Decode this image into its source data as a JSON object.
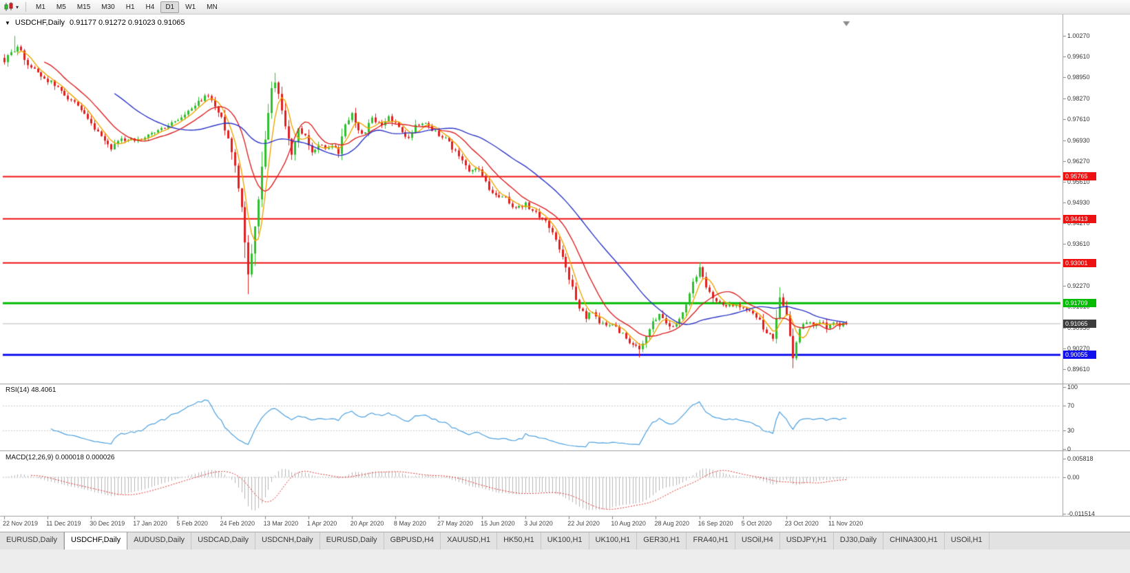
{
  "icons": {
    "chart_menu": "▼",
    "toolbar_caret": "▾"
  },
  "toolbar": {
    "timeframes": [
      "M1",
      "M5",
      "M15",
      "M30",
      "H1",
      "H4",
      "D1",
      "W1",
      "MN"
    ],
    "active_timeframe": "D1"
  },
  "chart": {
    "title_symbol": "USDCHF,Daily",
    "title_ohlc": "0.91177 0.91272 0.91023 0.91065"
  },
  "indicators": {
    "rsi": {
      "label_text": "RSI(14) 48.4061"
    },
    "macd": {
      "label_text": "MACD(12,26,9) 0.000018 0.000026"
    }
  },
  "chart_data": {
    "type": "candlestick",
    "symbol": "USDCHF",
    "timeframe": "Daily",
    "ohlc_current": {
      "open": 0.91177,
      "high": 0.91272,
      "low": 0.91023,
      "close": 0.91065
    },
    "x_labels": [
      "22 Nov 2019",
      "11 Dec 2019",
      "30 Dec 2019",
      "17 Jan 2020",
      "5 Feb 2020",
      "24 Feb 2020",
      "13 Mar 2020",
      "1 Apr 2020",
      "20 Apr 2020",
      "8 May 2020",
      "27 May 2020",
      "15 Jun 2020",
      "3 Jul 2020",
      "22 Jul 2020",
      "10 Aug 2020",
      "28 Aug 2020",
      "16 Sep 2020",
      "5 Oct 2020",
      "23 Oct 2020",
      "11 Nov 2020"
    ],
    "y_ticks": [
      "1.00270",
      "0.99610",
      "0.98950",
      "0.98270",
      "0.97610",
      "0.96930",
      "0.96270",
      "0.95610",
      "0.94930",
      "0.94270",
      "0.93610",
      "0.92930",
      "0.92270",
      "0.91610",
      "0.90930",
      "0.90270",
      "0.89610"
    ],
    "price_range": {
      "max": 1.0043,
      "min": 0.8918
    },
    "num_candles": 253,
    "label_every": 13,
    "close_path": [
      [
        0,
        0.9945
      ],
      [
        2,
        0.9972
      ],
      [
        4,
        0.9996
      ],
      [
        6,
        0.9952
      ],
      [
        8,
        0.9928
      ],
      [
        11,
        0.99
      ],
      [
        14,
        0.9878
      ],
      [
        17,
        0.985
      ],
      [
        20,
        0.9822
      ],
      [
        23,
        0.9785
      ],
      [
        26,
        0.9742
      ],
      [
        29,
        0.97
      ],
      [
        32,
        0.9668
      ],
      [
        35,
        0.9692
      ],
      [
        38,
        0.97
      ],
      [
        41,
        0.9688
      ],
      [
        44,
        0.9715
      ],
      [
        47,
        0.9728
      ],
      [
        50,
        0.9748
      ],
      [
        53,
        0.9765
      ],
      [
        56,
        0.9792
      ],
      [
        59,
        0.9822
      ],
      [
        61,
        0.984
      ],
      [
        63,
        0.98
      ],
      [
        65,
        0.9762
      ],
      [
        67,
        0.97
      ],
      [
        69,
        0.9612
      ],
      [
        71,
        0.948
      ],
      [
        73,
        0.9262
      ],
      [
        74,
        0.9335
      ],
      [
        76,
        0.9505
      ],
      [
        78,
        0.97
      ],
      [
        80,
        0.9855
      ],
      [
        81,
        0.9885
      ],
      [
        83,
        0.9792
      ],
      [
        85,
        0.9695
      ],
      [
        86,
        0.9648
      ],
      [
        88,
        0.9725
      ],
      [
        90,
        0.9702
      ],
      [
        92,
        0.9648
      ],
      [
        94,
        0.9685
      ],
      [
        96,
        0.9662
      ],
      [
        98,
        0.9678
      ],
      [
        100,
        0.9655
      ],
      [
        102,
        0.9745
      ],
      [
        104,
        0.9778
      ],
      [
        107,
        0.9708
      ],
      [
        110,
        0.976
      ],
      [
        113,
        0.9735
      ],
      [
        115,
        0.977
      ],
      [
        117,
        0.9748
      ],
      [
        119,
        0.9715
      ],
      [
        121,
        0.9708
      ],
      [
        123,
        0.9738
      ],
      [
        126,
        0.975
      ],
      [
        129,
        0.9718
      ],
      [
        132,
        0.97
      ],
      [
        135,
        0.9655
      ],
      [
        138,
        0.9608
      ],
      [
        140,
        0.9592
      ],
      [
        142,
        0.9605
      ],
      [
        144,
        0.9555
      ],
      [
        146,
        0.9522
      ],
      [
        148,
        0.951
      ],
      [
        150,
        0.9505
      ],
      [
        152,
        0.9482
      ],
      [
        154,
        0.9478
      ],
      [
        156,
        0.9488
      ],
      [
        158,
        0.9462
      ],
      [
        160,
        0.9452
      ],
      [
        162,
        0.9432
      ],
      [
        164,
        0.94
      ],
      [
        166,
        0.9348
      ],
      [
        168,
        0.9285
      ],
      [
        170,
        0.922
      ],
      [
        172,
        0.9158
      ],
      [
        174,
        0.9125
      ],
      [
        176,
        0.9148
      ],
      [
        178,
        0.9112
      ],
      [
        180,
        0.9095
      ],
      [
        182,
        0.9105
      ],
      [
        184,
        0.9082
      ],
      [
        186,
        0.906
      ],
      [
        188,
        0.9038
      ],
      [
        190,
        0.9018
      ],
      [
        192,
        0.906
      ],
      [
        194,
        0.9112
      ],
      [
        196,
        0.9135
      ],
      [
        198,
        0.9112
      ],
      [
        200,
        0.9095
      ],
      [
        202,
        0.9125
      ],
      [
        204,
        0.9168
      ],
      [
        206,
        0.924
      ],
      [
        208,
        0.9282
      ],
      [
        210,
        0.922
      ],
      [
        212,
        0.919
      ],
      [
        214,
        0.9178
      ],
      [
        216,
        0.9158
      ],
      [
        218,
        0.9168
      ],
      [
        220,
        0.9156
      ],
      [
        222,
        0.9146
      ],
      [
        224,
        0.9135
      ],
      [
        226,
        0.9112
      ],
      [
        228,
        0.9072
      ],
      [
        230,
        0.906
      ],
      [
        232,
        0.9195
      ],
      [
        234,
        0.9132
      ],
      [
        236,
        0.899
      ],
      [
        238,
        0.9092
      ],
      [
        240,
        0.9112
      ],
      [
        242,
        0.9102
      ],
      [
        244,
        0.9112
      ],
      [
        246,
        0.9098
      ],
      [
        248,
        0.9108
      ],
      [
        250,
        0.91
      ],
      [
        252,
        0.91065
      ]
    ],
    "forced_extremes": [
      [
        3,
        "h",
        1.0027
      ],
      [
        73,
        "l",
        0.92
      ],
      [
        81,
        "h",
        0.9909
      ],
      [
        190,
        "l",
        0.8997
      ],
      [
        208,
        "h",
        0.9302
      ],
      [
        232,
        "h",
        0.9222
      ],
      [
        236,
        "l",
        0.8963
      ]
    ],
    "hlines": [
      {
        "price": 0.95765,
        "label": "0.95765",
        "color": "#ee1111",
        "width": 2
      },
      {
        "price": 0.94413,
        "label": "0.94413",
        "color": "#ee1111",
        "width": 2
      },
      {
        "price": 0.93001,
        "label": "0.93001",
        "color": "#ee1111",
        "width": 2
      },
      {
        "price": 0.91709,
        "label": "0.91709",
        "color": "#00bb00",
        "width": 3
      },
      {
        "price": 0.90055,
        "label": "0.90055",
        "color": "#1111ee",
        "width": 3
      }
    ],
    "current_price": {
      "value": 0.91065,
      "label": "0.91065",
      "badge_color": "#3c3c3c",
      "line_color": "#b5b5b5"
    },
    "moving_averages": [
      {
        "period": 5,
        "color": "#eea500"
      },
      {
        "period": 13,
        "color": "#dd2020"
      },
      {
        "period": 34,
        "color": "#2b35c8"
      }
    ],
    "candle_colors": {
      "up": "#2fbf2f",
      "down": "#e02020"
    },
    "rsi": {
      "period": 14,
      "value": 48.4061,
      "color": "#4a9fe0",
      "levels": [
        "100",
        "70",
        "30",
        "0"
      ],
      "level_lines": [
        70,
        30
      ]
    },
    "macd": {
      "fast": 12,
      "slow": 26,
      "signal": 9,
      "value": 1.8e-05,
      "signal_value": 2.6e-05,
      "y_ticks": [
        "0.005818",
        "0.00",
        "-0.011514"
      ],
      "range": {
        "max": 0.0075,
        "min": -0.012
      },
      "hist_color": "#b5b5b5",
      "signal_color": "#e03030"
    }
  },
  "tabs": [
    {
      "label": "EURUSD,Daily",
      "active": false
    },
    {
      "label": "USDCHF,Daily",
      "active": true
    },
    {
      "label": "AUDUSD,Daily",
      "active": false
    },
    {
      "label": "USDCAD,Daily",
      "active": false
    },
    {
      "label": "USDCNH,Daily",
      "active": false
    },
    {
      "label": "EURUSD,Daily",
      "active": false
    },
    {
      "label": "GBPUSD,H4",
      "active": false
    },
    {
      "label": "XAUUSD,H1",
      "active": false
    },
    {
      "label": "HK50,H1",
      "active": false
    },
    {
      "label": "UK100,H1",
      "active": false
    },
    {
      "label": "UK100,H1",
      "active": false
    },
    {
      "label": "GER30,H1",
      "active": false
    },
    {
      "label": "FRA40,H1",
      "active": false
    },
    {
      "label": "USOil,H4",
      "active": false
    },
    {
      "label": "USDJPY,H1",
      "active": false
    },
    {
      "label": "DJ30,Daily",
      "active": false
    },
    {
      "label": "CHINA300,H1",
      "active": false
    },
    {
      "label": "USOil,H1",
      "active": false
    }
  ]
}
